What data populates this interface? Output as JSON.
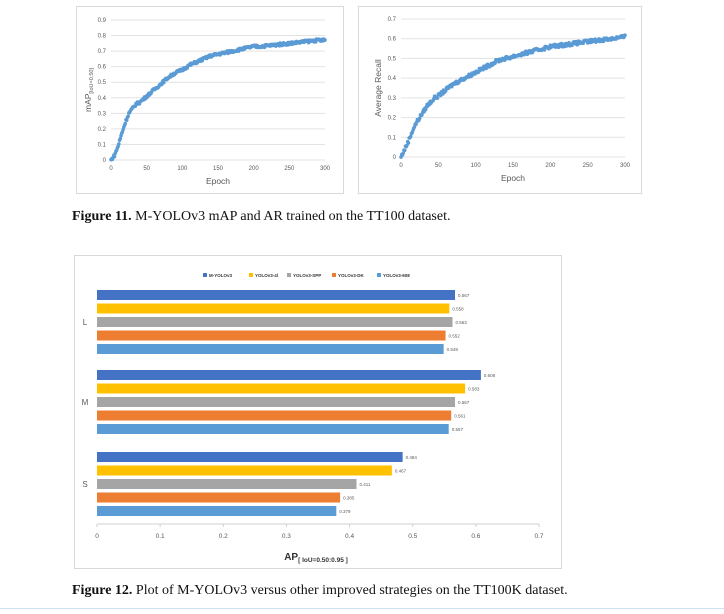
{
  "figures": [
    {
      "number": "Figure 11.",
      "text": " M-YOLOv3 mAP and AR trained on the TT100 dataset."
    },
    {
      "number": "Figure 12.",
      "text": " Plot of M-YOLOv3 versus other improved strategies on the TT100K dataset."
    }
  ],
  "chart_data": [
    {
      "type": "scatter",
      "xlabel": "Epoch",
      "ylabel_main": "mAP",
      "ylabel_sub": "[IoU=0.50]",
      "xlim": [
        0,
        300
      ],
      "ylim": [
        0,
        0.9
      ],
      "xticks": [
        0,
        50,
        100,
        150,
        200,
        250,
        300
      ],
      "yticks": [
        "0",
        "0.1",
        "0.2",
        "0.3",
        "0.4",
        "0.5",
        "0.6",
        "0.7",
        "0.8",
        "0.9"
      ],
      "color": "#5b9bd5",
      "curve": {
        "x": [
          0,
          5,
          10,
          15,
          20,
          25,
          30,
          35,
          40,
          45,
          50,
          60,
          70,
          80,
          90,
          100,
          110,
          120,
          130,
          140,
          150,
          160,
          170,
          180,
          190,
          200,
          210,
          220,
          230,
          240,
          250,
          260,
          270,
          280,
          290,
          300
        ],
        "y": [
          0.0,
          0.03,
          0.09,
          0.17,
          0.24,
          0.3,
          0.33,
          0.36,
          0.37,
          0.39,
          0.41,
          0.45,
          0.49,
          0.53,
          0.56,
          0.58,
          0.61,
          0.63,
          0.65,
          0.67,
          0.68,
          0.69,
          0.7,
          0.71,
          0.72,
          0.73,
          0.73,
          0.735,
          0.74,
          0.745,
          0.75,
          0.755,
          0.76,
          0.765,
          0.77,
          0.77
        ]
      }
    },
    {
      "type": "scatter",
      "xlabel": "Epoch",
      "ylabel": "Average Recall",
      "xlim": [
        0,
        300
      ],
      "ylim": [
        0,
        0.7
      ],
      "xticks": [
        0,
        50,
        100,
        150,
        200,
        250,
        300
      ],
      "yticks": [
        "0",
        "0.1",
        "0.2",
        "0.3",
        "0.4",
        "0.5",
        "0.6",
        "0.7"
      ],
      "color": "#5b9bd5",
      "curve": {
        "x": [
          0,
          5,
          10,
          15,
          20,
          25,
          30,
          35,
          40,
          45,
          50,
          60,
          70,
          80,
          90,
          100,
          110,
          120,
          130,
          140,
          150,
          160,
          170,
          180,
          190,
          200,
          210,
          220,
          230,
          240,
          250,
          260,
          270,
          280,
          290,
          300
        ],
        "y": [
          0.0,
          0.04,
          0.08,
          0.13,
          0.17,
          0.2,
          0.23,
          0.26,
          0.28,
          0.3,
          0.31,
          0.34,
          0.37,
          0.39,
          0.41,
          0.43,
          0.45,
          0.47,
          0.49,
          0.5,
          0.51,
          0.52,
          0.53,
          0.54,
          0.55,
          0.56,
          0.565,
          0.57,
          0.575,
          0.58,
          0.585,
          0.59,
          0.595,
          0.6,
          0.605,
          0.61
        ]
      }
    },
    {
      "type": "bar",
      "orientation": "horizontal",
      "categories": [
        "L",
        "M",
        "S"
      ],
      "series": [
        {
          "name": "M-YOLOv3",
          "color": "#4472c4",
          "values": [
            0.567,
            0.608,
            0.484
          ],
          "labels": [
            "0.567",
            "0.608",
            "0.484"
          ]
        },
        {
          "name": "YOLOv3-4l",
          "color": "#ffc000",
          "values": [
            0.558,
            0.583,
            0.467
          ],
          "labels": [
            "0.558",
            "0.583",
            "0.467"
          ]
        },
        {
          "name": "YOLOv3-SPP",
          "color": "#a5a5a5",
          "values": [
            0.563,
            0.567,
            0.411
          ],
          "labels": [
            "0.563",
            "0.567",
            "0.411"
          ]
        },
        {
          "name": "YOLOv3-DK",
          "color": "#ed7d31",
          "values": [
            0.552,
            0.561,
            0.385
          ],
          "labels": [
            "0.552",
            "0.561",
            "0.385"
          ]
        },
        {
          "name": "YOLOv3-608",
          "color": "#5b9bd5",
          "values": [
            0.549,
            0.557,
            0.379
          ],
          "labels": [
            "0.549",
            "0.557",
            "0.379"
          ]
        }
      ],
      "xlim": [
        0,
        0.7
      ],
      "xticks": [
        "0",
        "0.1",
        "0.2",
        "0.3",
        "0.4",
        "0.5",
        "0.6",
        "0.7"
      ],
      "xlabel_main": "AP",
      "xlabel_sub": "[ IoU=0.50:0.95 ]",
      "legend": "top"
    }
  ]
}
